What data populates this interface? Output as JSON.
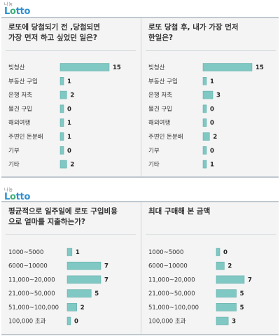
{
  "brand": {
    "small": "나눔",
    "main_a": "L",
    "main_o": "o",
    "main_b": "tto"
  },
  "chart_data": [
    {
      "type": "bar",
      "title": "로또에 당첨되기 전 ,당첨되면 가장 먼저 하고 싶었던 일은?",
      "title_lines": [
        "로또에 당첨되기 전 ,당첨되면",
        "가장 먼저 하고 싶었던 일은?"
      ],
      "categories": [
        "빚청산",
        "부동산 구입",
        "은행 저축",
        "물건 구입",
        "해외여행",
        "주변인 돈분배",
        "기부",
        "기타"
      ],
      "values": [
        15,
        1,
        2,
        0,
        1,
        1,
        0,
        2
      ],
      "xlim": [
        0,
        15
      ]
    },
    {
      "type": "bar",
      "title": "로또 당첨 후, 내가 가장 먼저 한일은?",
      "title_lines": [
        "로또 당첨 후, 내가 가장 먼저",
        "한일은?"
      ],
      "categories": [
        "빚청산",
        "부동산 구입",
        "은행 저축",
        "물건 구입",
        "해외여행",
        "주변인 돈분배",
        "기부",
        "기타"
      ],
      "values": [
        15,
        1,
        3,
        0,
        0,
        2,
        0,
        1
      ],
      "xlim": [
        0,
        15
      ]
    },
    {
      "type": "bar",
      "title": "평균적으로 일주일에 로또 구입비용으로 얼마를 지출하는가?",
      "title_lines": [
        "평균적으로 일주일에 로또 구입비용",
        "으로 얼마를 지출하는가?"
      ],
      "categories": [
        "1000~5000",
        "6000~10000",
        "11,000~20,000",
        "21,000~50,000",
        "51,000~100,000",
        "100,000 초과"
      ],
      "values": [
        1,
        7,
        7,
        5,
        2,
        0
      ],
      "xlim": [
        0,
        7
      ]
    },
    {
      "type": "bar",
      "title": "최대 구매해 본 금액",
      "title_lines": [
        "최대 구매해 본 금액"
      ],
      "categories": [
        "1000~5000",
        "6000~10000",
        "11,000~20,000",
        "21,000~50,000",
        "51,000~100,000",
        "100,000 초과"
      ],
      "values": [
        0,
        2,
        7,
        5,
        5,
        3
      ],
      "xlim": [
        0,
        7
      ]
    }
  ]
}
